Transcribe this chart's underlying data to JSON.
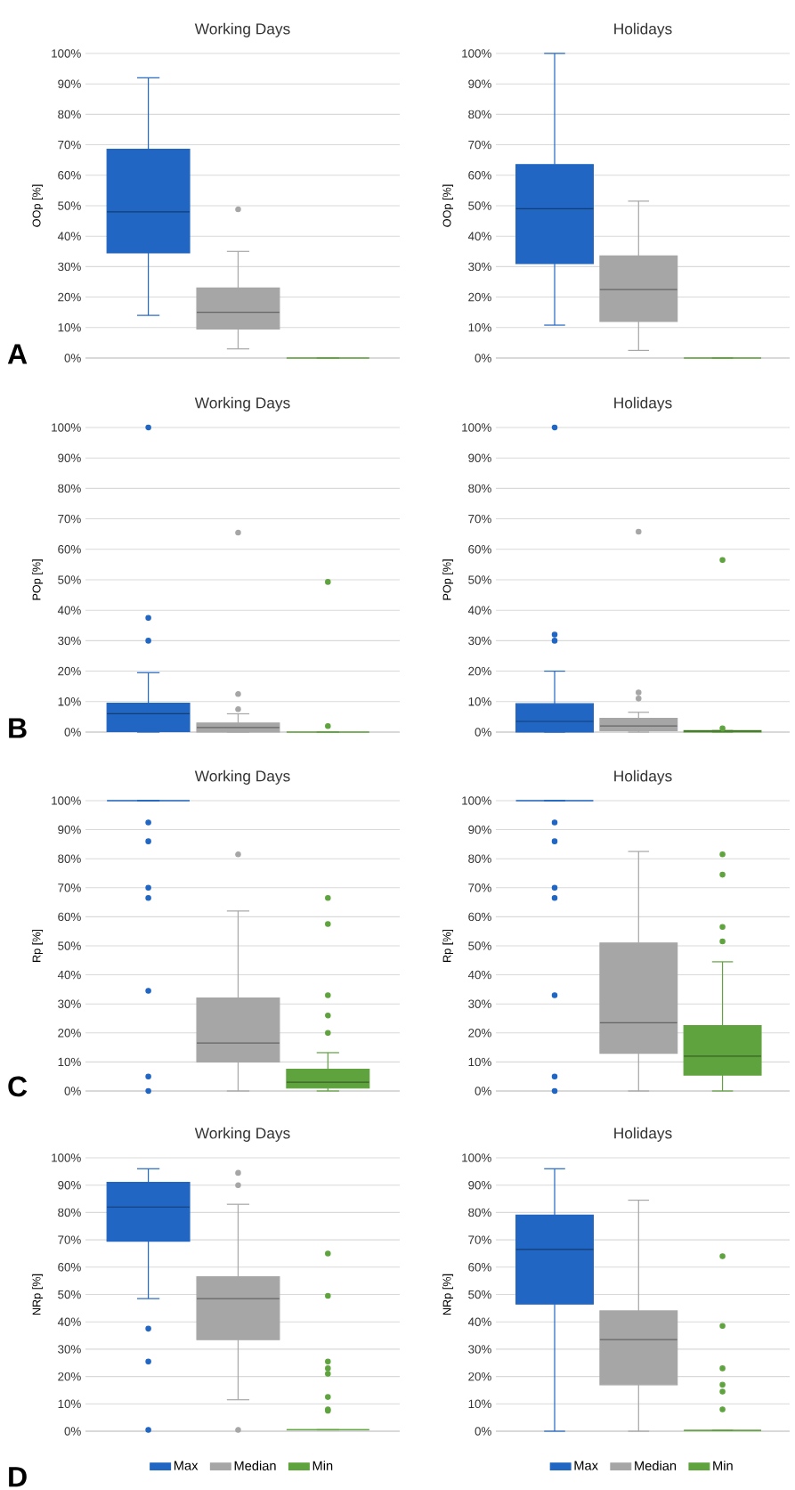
{
  "chart_data": [
    {
      "type": "box",
      "title": "Working Days",
      "ylabel": "OOp [%]",
      "categories": [
        null
      ],
      "ylim": [
        0,
        100
      ],
      "yticks": [
        {
          "value": 0,
          "label": "0%"
        },
        {
          "value": 10,
          "label": "10%"
        },
        {
          "value": 20,
          "label": "20%"
        },
        {
          "value": 30,
          "label": "30%"
        },
        {
          "value": 40,
          "label": "40%"
        },
        {
          "value": 50,
          "label": "50%"
        },
        {
          "value": 60,
          "label": "60%"
        },
        {
          "value": 70,
          "label": "70%"
        },
        {
          "value": 80,
          "label": "80%"
        },
        {
          "value": 90,
          "label": "90%"
        },
        {
          "value": 100,
          "label": "100%"
        }
      ],
      "grid": "y",
      "annotations": [
        "A"
      ],
      "series": [
        {
          "color": "#2166c2",
          "boxes": [
            {
              "low": 14,
              "q1": 34.5,
              "median": 48,
              "q3": 68.5,
              "high": 92
            }
          ]
        },
        {
          "color": "#a6a6a6",
          "boxes": [
            {
              "low": 3,
              "q1": 9.5,
              "median": 15,
              "q3": 23,
              "high": 35,
              "outliers": [
                48.8
              ]
            }
          ]
        },
        {
          "color": "#5fa33e",
          "boxes": [
            {
              "low": 0,
              "q1": 0,
              "median": 0,
              "q3": 0,
              "high": 0
            }
          ]
        }
      ]
    },
    {
      "type": "box",
      "title": "Holidays",
      "ylabel": "OOp [%]",
      "categories": [
        null
      ],
      "ylim": [
        0,
        100
      ],
      "yticks": [
        {
          "value": 0,
          "label": "0%"
        },
        {
          "value": 10,
          "label": "10%"
        },
        {
          "value": 20,
          "label": "20%"
        },
        {
          "value": 30,
          "label": "30%"
        },
        {
          "value": 40,
          "label": "40%"
        },
        {
          "value": 50,
          "label": "50%"
        },
        {
          "value": 60,
          "label": "60%"
        },
        {
          "value": 70,
          "label": "70%"
        },
        {
          "value": 80,
          "label": "80%"
        },
        {
          "value": 90,
          "label": "90%"
        },
        {
          "value": 100,
          "label": "100%"
        }
      ],
      "grid": "y",
      "series": [
        {
          "color": "#2166c2",
          "boxes": [
            {
              "low": 10.8,
              "q1": 31,
              "median": 49,
              "q3": 63.5,
              "high": 100
            }
          ]
        },
        {
          "color": "#a6a6a6",
          "boxes": [
            {
              "low": 2.5,
              "q1": 12,
              "median": 22.5,
              "q3": 33.5,
              "high": 51.5
            }
          ]
        },
        {
          "color": "#5fa33e",
          "boxes": [
            {
              "low": 0,
              "q1": 0,
              "median": 0,
              "q3": 0,
              "high": 0
            }
          ]
        }
      ]
    },
    {
      "type": "box",
      "title": "Working Days",
      "ylabel": "POp [%]",
      "categories": [
        null
      ],
      "ylim": [
        0,
        100
      ],
      "yticks": [
        {
          "value": 0,
          "label": "0%"
        },
        {
          "value": 10,
          "label": "10%"
        },
        {
          "value": 20,
          "label": "20%"
        },
        {
          "value": 30,
          "label": "30%"
        },
        {
          "value": 40,
          "label": "40%"
        },
        {
          "value": 50,
          "label": "50%"
        },
        {
          "value": 60,
          "label": "60%"
        },
        {
          "value": 70,
          "label": "70%"
        },
        {
          "value": 80,
          "label": "80%"
        },
        {
          "value": 90,
          "label": "90%"
        },
        {
          "value": 100,
          "label": "100%"
        }
      ],
      "grid": "y",
      "annotations": [
        "B"
      ],
      "series": [
        {
          "color": "#2166c2",
          "boxes": [
            {
              "low": 0,
              "q1": 0.2,
              "median": 6,
              "q3": 9.5,
              "high": 19.5,
              "outliers": [
                30,
                37.5,
                100
              ]
            }
          ]
        },
        {
          "color": "#a6a6a6",
          "boxes": [
            {
              "low": 0,
              "q1": 0,
              "median": 1.5,
              "q3": 3,
              "high": 6,
              "outliers": [
                7.5,
                12.5,
                65.5
              ]
            }
          ]
        },
        {
          "color": "#5fa33e",
          "boxes": [
            {
              "low": 0,
              "q1": 0,
              "median": 0,
              "q3": 0,
              "high": 0,
              "outliers": [
                2,
                49.3
              ]
            }
          ]
        }
      ]
    },
    {
      "type": "box",
      "title": "Holidays",
      "ylabel": "POp [%]",
      "categories": [
        null
      ],
      "ylim": [
        0,
        100
      ],
      "yticks": [
        {
          "value": 0,
          "label": "0%"
        },
        {
          "value": 10,
          "label": "10%"
        },
        {
          "value": 20,
          "label": "20%"
        },
        {
          "value": 30,
          "label": "30%"
        },
        {
          "value": 40,
          "label": "40%"
        },
        {
          "value": 50,
          "label": "50%"
        },
        {
          "value": 60,
          "label": "60%"
        },
        {
          "value": 70,
          "label": "70%"
        },
        {
          "value": 80,
          "label": "80%"
        },
        {
          "value": 90,
          "label": "90%"
        },
        {
          "value": 100,
          "label": "100%"
        }
      ],
      "grid": "y",
      "series": [
        {
          "color": "#2166c2",
          "boxes": [
            {
              "low": 0,
              "q1": 0,
              "median": 3.5,
              "q3": 9.3,
              "high": 20,
              "outliers": [
                30,
                32,
                100
              ]
            }
          ]
        },
        {
          "color": "#a6a6a6",
          "boxes": [
            {
              "low": 0,
              "q1": 0.5,
              "median": 2,
              "q3": 4.5,
              "high": 6.5,
              "outliers": [
                11,
                13,
                65.8
              ]
            }
          ]
        },
        {
          "color": "#5fa33e",
          "boxes": [
            {
              "low": 0,
              "q1": 0,
              "median": 0.3,
              "q3": 0.5,
              "high": 0.5,
              "outliers": [
                1.2,
                56.5
              ]
            }
          ]
        }
      ]
    },
    {
      "type": "box",
      "title": "Working Days",
      "ylabel": "Rp [%]",
      "categories": [
        null
      ],
      "ylim": [
        0,
        100
      ],
      "yticks": [
        {
          "value": 0,
          "label": "0%"
        },
        {
          "value": 10,
          "label": "10%"
        },
        {
          "value": 20,
          "label": "20%"
        },
        {
          "value": 30,
          "label": "30%"
        },
        {
          "value": 40,
          "label": "40%"
        },
        {
          "value": 50,
          "label": "50%"
        },
        {
          "value": 60,
          "label": "60%"
        },
        {
          "value": 70,
          "label": "70%"
        },
        {
          "value": 80,
          "label": "80%"
        },
        {
          "value": 90,
          "label": "90%"
        },
        {
          "value": 100,
          "label": "100%"
        }
      ],
      "grid": "y",
      "annotations": [
        "C"
      ],
      "series": [
        {
          "color": "#2166c2",
          "boxes": [
            {
              "low": 100,
              "q1": 100,
              "median": 100,
              "q3": 100,
              "high": 100,
              "outliers": [
                0,
                5,
                34.5,
                66.5,
                70,
                86,
                92.5
              ]
            }
          ]
        },
        {
          "color": "#a6a6a6",
          "boxes": [
            {
              "low": 0,
              "q1": 10,
              "median": 16.5,
              "q3": 32,
              "high": 62,
              "outliers": [
                81.5
              ]
            }
          ]
        },
        {
          "color": "#5fa33e",
          "boxes": [
            {
              "low": 0,
              "q1": 1,
              "median": 3,
              "q3": 7.5,
              "high": 13.2,
              "outliers": [
                20,
                26,
                33,
                57.5,
                66.5
              ]
            }
          ]
        }
      ]
    },
    {
      "type": "box",
      "title": "Holidays",
      "ylabel": "Rp [%]",
      "categories": [
        null
      ],
      "ylim": [
        0,
        100
      ],
      "yticks": [
        {
          "value": 0,
          "label": "0%"
        },
        {
          "value": 10,
          "label": "10%"
        },
        {
          "value": 20,
          "label": "20%"
        },
        {
          "value": 30,
          "label": "30%"
        },
        {
          "value": 40,
          "label": "40%"
        },
        {
          "value": 50,
          "label": "50%"
        },
        {
          "value": 60,
          "label": "60%"
        },
        {
          "value": 70,
          "label": "70%"
        },
        {
          "value": 80,
          "label": "80%"
        },
        {
          "value": 90,
          "label": "90%"
        },
        {
          "value": 100,
          "label": "100%"
        }
      ],
      "grid": "y",
      "series": [
        {
          "color": "#2166c2",
          "boxes": [
            {
              "low": 100,
              "q1": 100,
              "median": 100,
              "q3": 100,
              "high": 100,
              "outliers": [
                0,
                5,
                33,
                66.5,
                70,
                86,
                92.5
              ]
            }
          ]
        },
        {
          "color": "#a6a6a6",
          "boxes": [
            {
              "low": 0,
              "q1": 13,
              "median": 23.5,
              "q3": 51,
              "high": 82.5
            }
          ]
        },
        {
          "color": "#5fa33e",
          "boxes": [
            {
              "low": 0,
              "q1": 5.5,
              "median": 12,
              "q3": 22.5,
              "high": 44.5,
              "outliers": [
                51.5,
                56.5,
                74.5,
                81.5
              ]
            }
          ]
        }
      ]
    },
    {
      "type": "box",
      "title": "Working Days",
      "ylabel": "NRp [%]",
      "categories": [
        null
      ],
      "ylim": [
        0,
        100
      ],
      "yticks": [
        {
          "value": 0,
          "label": "0%"
        },
        {
          "value": 10,
          "label": "10%"
        },
        {
          "value": 20,
          "label": "20%"
        },
        {
          "value": 30,
          "label": "30%"
        },
        {
          "value": 40,
          "label": "40%"
        },
        {
          "value": 50,
          "label": "50%"
        },
        {
          "value": 60,
          "label": "60%"
        },
        {
          "value": 70,
          "label": "70%"
        },
        {
          "value": 80,
          "label": "80%"
        },
        {
          "value": 90,
          "label": "90%"
        },
        {
          "value": 100,
          "label": "100%"
        }
      ],
      "grid": "y",
      "legend": "bottom",
      "annotations": [
        "D"
      ],
      "series": [
        {
          "name": "Max",
          "color": "#2166c2",
          "boxes": [
            {
              "low": 48.5,
              "q1": 69.5,
              "median": 82,
              "q3": 91,
              "high": 96,
              "outliers": [
                0.5,
                25.5,
                37.5
              ]
            }
          ]
        },
        {
          "name": "Median",
          "color": "#a6a6a6",
          "boxes": [
            {
              "low": 11.5,
              "q1": 33.5,
              "median": 48.5,
              "q3": 56.5,
              "high": 83,
              "outliers": [
                0.5,
                90,
                94.5
              ]
            }
          ]
        },
        {
          "name": "Min",
          "color": "#5fa33e",
          "boxes": [
            {
              "low": 0.5,
              "q1": 0.5,
              "median": 0.5,
              "q3": 0.5,
              "high": 0.5,
              "outliers": [
                7.5,
                8,
                12.5,
                21,
                23,
                25.5,
                49.5,
                65
              ]
            }
          ]
        }
      ]
    },
    {
      "type": "box",
      "title": "Holidays",
      "ylabel": "NRp [%]",
      "categories": [
        null
      ],
      "ylim": [
        0,
        100
      ],
      "yticks": [
        {
          "value": 0,
          "label": "0%"
        },
        {
          "value": 10,
          "label": "10%"
        },
        {
          "value": 20,
          "label": "20%"
        },
        {
          "value": 30,
          "label": "30%"
        },
        {
          "value": 40,
          "label": "40%"
        },
        {
          "value": 50,
          "label": "50%"
        },
        {
          "value": 60,
          "label": "60%"
        },
        {
          "value": 70,
          "label": "70%"
        },
        {
          "value": 80,
          "label": "80%"
        },
        {
          "value": 90,
          "label": "90%"
        },
        {
          "value": 100,
          "label": "100%"
        }
      ],
      "grid": "y",
      "legend": "bottom",
      "series": [
        {
          "name": "Max",
          "color": "#2166c2",
          "boxes": [
            {
              "low": 0,
              "q1": 46.5,
              "median": 66.5,
              "q3": 79,
              "high": 96
            }
          ]
        },
        {
          "name": "Median",
          "color": "#a6a6a6",
          "boxes": [
            {
              "low": 0,
              "q1": 17,
              "median": 33.5,
              "q3": 44,
              "high": 84.5
            }
          ]
        },
        {
          "name": "Min",
          "color": "#5fa33e",
          "boxes": [
            {
              "low": 0.3,
              "q1": 0.3,
              "median": 0.3,
              "q3": 0.3,
              "high": 0.3,
              "outliers": [
                8,
                14.5,
                17,
                23,
                38.5,
                64
              ]
            }
          ]
        }
      ]
    }
  ]
}
